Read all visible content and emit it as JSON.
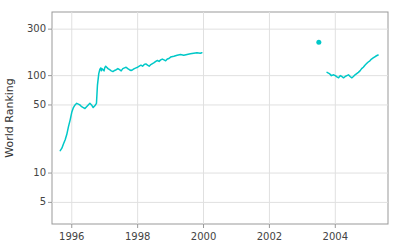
{
  "chart_data": {
    "type": "line",
    "ylabel": "World Ranking",
    "log": "y",
    "grid": true,
    "xlim": [
      1995.4,
      2005.6
    ],
    "ylim": [
      3,
      450
    ],
    "xticks": [
      1996,
      1998,
      2000,
      2002,
      2004
    ],
    "yticks": [
      5,
      10,
      50,
      100,
      300
    ],
    "series": [
      {
        "color": "#00c8c8",
        "x": [
          1995.65,
          1995.7,
          1995.75,
          1995.8,
          1995.85,
          1995.9,
          1995.95,
          1996.0,
          1996.05,
          1996.1,
          1996.15,
          1996.2,
          1996.25,
          1996.3,
          1996.35,
          1996.4,
          1996.45,
          1996.5,
          1996.55,
          1996.6,
          1996.65,
          1996.7,
          1996.75,
          1996.78,
          1996.82,
          1996.85,
          1996.88,
          1996.9,
          1996.92,
          1996.95,
          1996.98,
          1997.0,
          1997.03,
          1997.06,
          1997.1,
          1997.15,
          1997.2,
          1997.25,
          1997.3,
          1997.35,
          1997.4,
          1997.45,
          1997.5,
          1997.55,
          1997.6,
          1997.65,
          1997.7,
          1997.75,
          1997.8,
          1997.85,
          1997.9,
          1997.95,
          1998.0,
          1998.05,
          1998.1,
          1998.15,
          1998.2,
          1998.25,
          1998.3,
          1998.35,
          1998.4,
          1998.45,
          1998.5,
          1998.55,
          1998.6,
          1998.65,
          1998.7,
          1998.75,
          1998.8,
          1998.85,
          1998.9,
          1998.95,
          1999.0,
          1999.1,
          1999.2,
          1999.3,
          1999.4,
          1999.5,
          1999.6,
          1999.7,
          1999.8,
          1999.9,
          1999.95
        ],
        "values": [
          17,
          18,
          20,
          22,
          25,
          30,
          35,
          42,
          47,
          50,
          52,
          51,
          50,
          48,
          47,
          46,
          48,
          50,
          52,
          50,
          47,
          49,
          52,
          80,
          105,
          115,
          120,
          112,
          118,
          115,
          112,
          120,
          125,
          122,
          118,
          115,
          112,
          110,
          113,
          115,
          118,
          115,
          112,
          118,
          120,
          122,
          118,
          115,
          113,
          115,
          118,
          120,
          122,
          125,
          128,
          125,
          130,
          132,
          128,
          125,
          130,
          133,
          136,
          140,
          143,
          140,
          145,
          148,
          145,
          142,
          148,
          150,
          155,
          158,
          162,
          165,
          162,
          165,
          168,
          170,
          172,
          170,
          172
        ]
      },
      {
        "color": "#00c8c8",
        "type": "scatter",
        "marker": "circle",
        "x": [
          2003.5
        ],
        "values": [
          220
        ]
      },
      {
        "color": "#00c8c8",
        "x": [
          2003.75,
          2003.82,
          2003.88,
          2003.95,
          2004.0,
          2004.05,
          2004.1,
          2004.15,
          2004.2,
          2004.25,
          2004.3,
          2004.35,
          2004.4,
          2004.45,
          2004.5,
          2004.55,
          2004.6,
          2004.65,
          2004.7,
          2004.75,
          2004.8,
          2004.85,
          2004.9,
          2004.95,
          2005.0,
          2005.05,
          2005.1,
          2005.15,
          2005.2,
          2005.25,
          2005.3
        ],
        "values": [
          108,
          105,
          100,
          102,
          100,
          97,
          95,
          100,
          98,
          95,
          98,
          100,
          102,
          98,
          95,
          98,
          102,
          105,
          108,
          112,
          118,
          122,
          128,
          133,
          138,
          142,
          148,
          152,
          156,
          160,
          163
        ]
      }
    ]
  }
}
